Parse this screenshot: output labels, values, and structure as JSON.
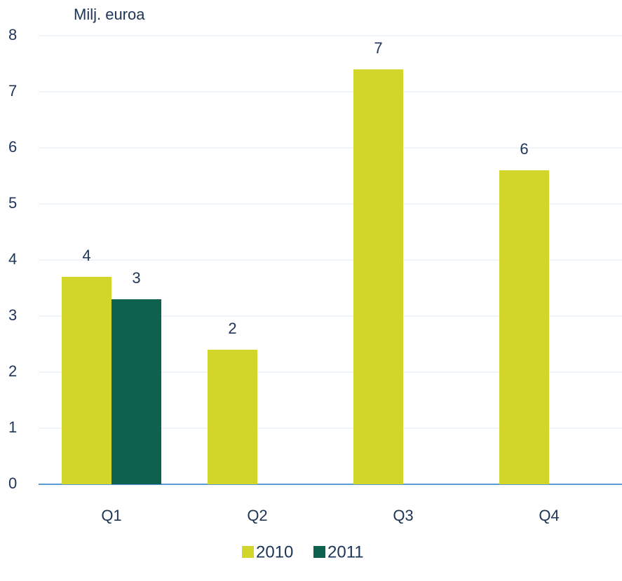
{
  "chart_data": {
    "type": "bar",
    "y_axis_label": "Milj. euroa",
    "categories": [
      "Q1",
      "Q2",
      "Q3",
      "Q4"
    ],
    "series": [
      {
        "name": "2010",
        "color": "#d2d62a",
        "values": [
          3.7,
          2.4,
          7.4,
          5.6
        ],
        "value_labels": [
          "4",
          "2",
          "7",
          "6"
        ]
      },
      {
        "name": "2011",
        "color": "#0e614e",
        "values": [
          3.3,
          null,
          null,
          null
        ],
        "value_labels": [
          "3",
          null,
          null,
          null
        ]
      }
    ],
    "ylim": [
      0,
      8
    ],
    "yticks": [
      0,
      1,
      2,
      3,
      4,
      5,
      6,
      7,
      8
    ],
    "grid": true,
    "legend": "bottom"
  }
}
